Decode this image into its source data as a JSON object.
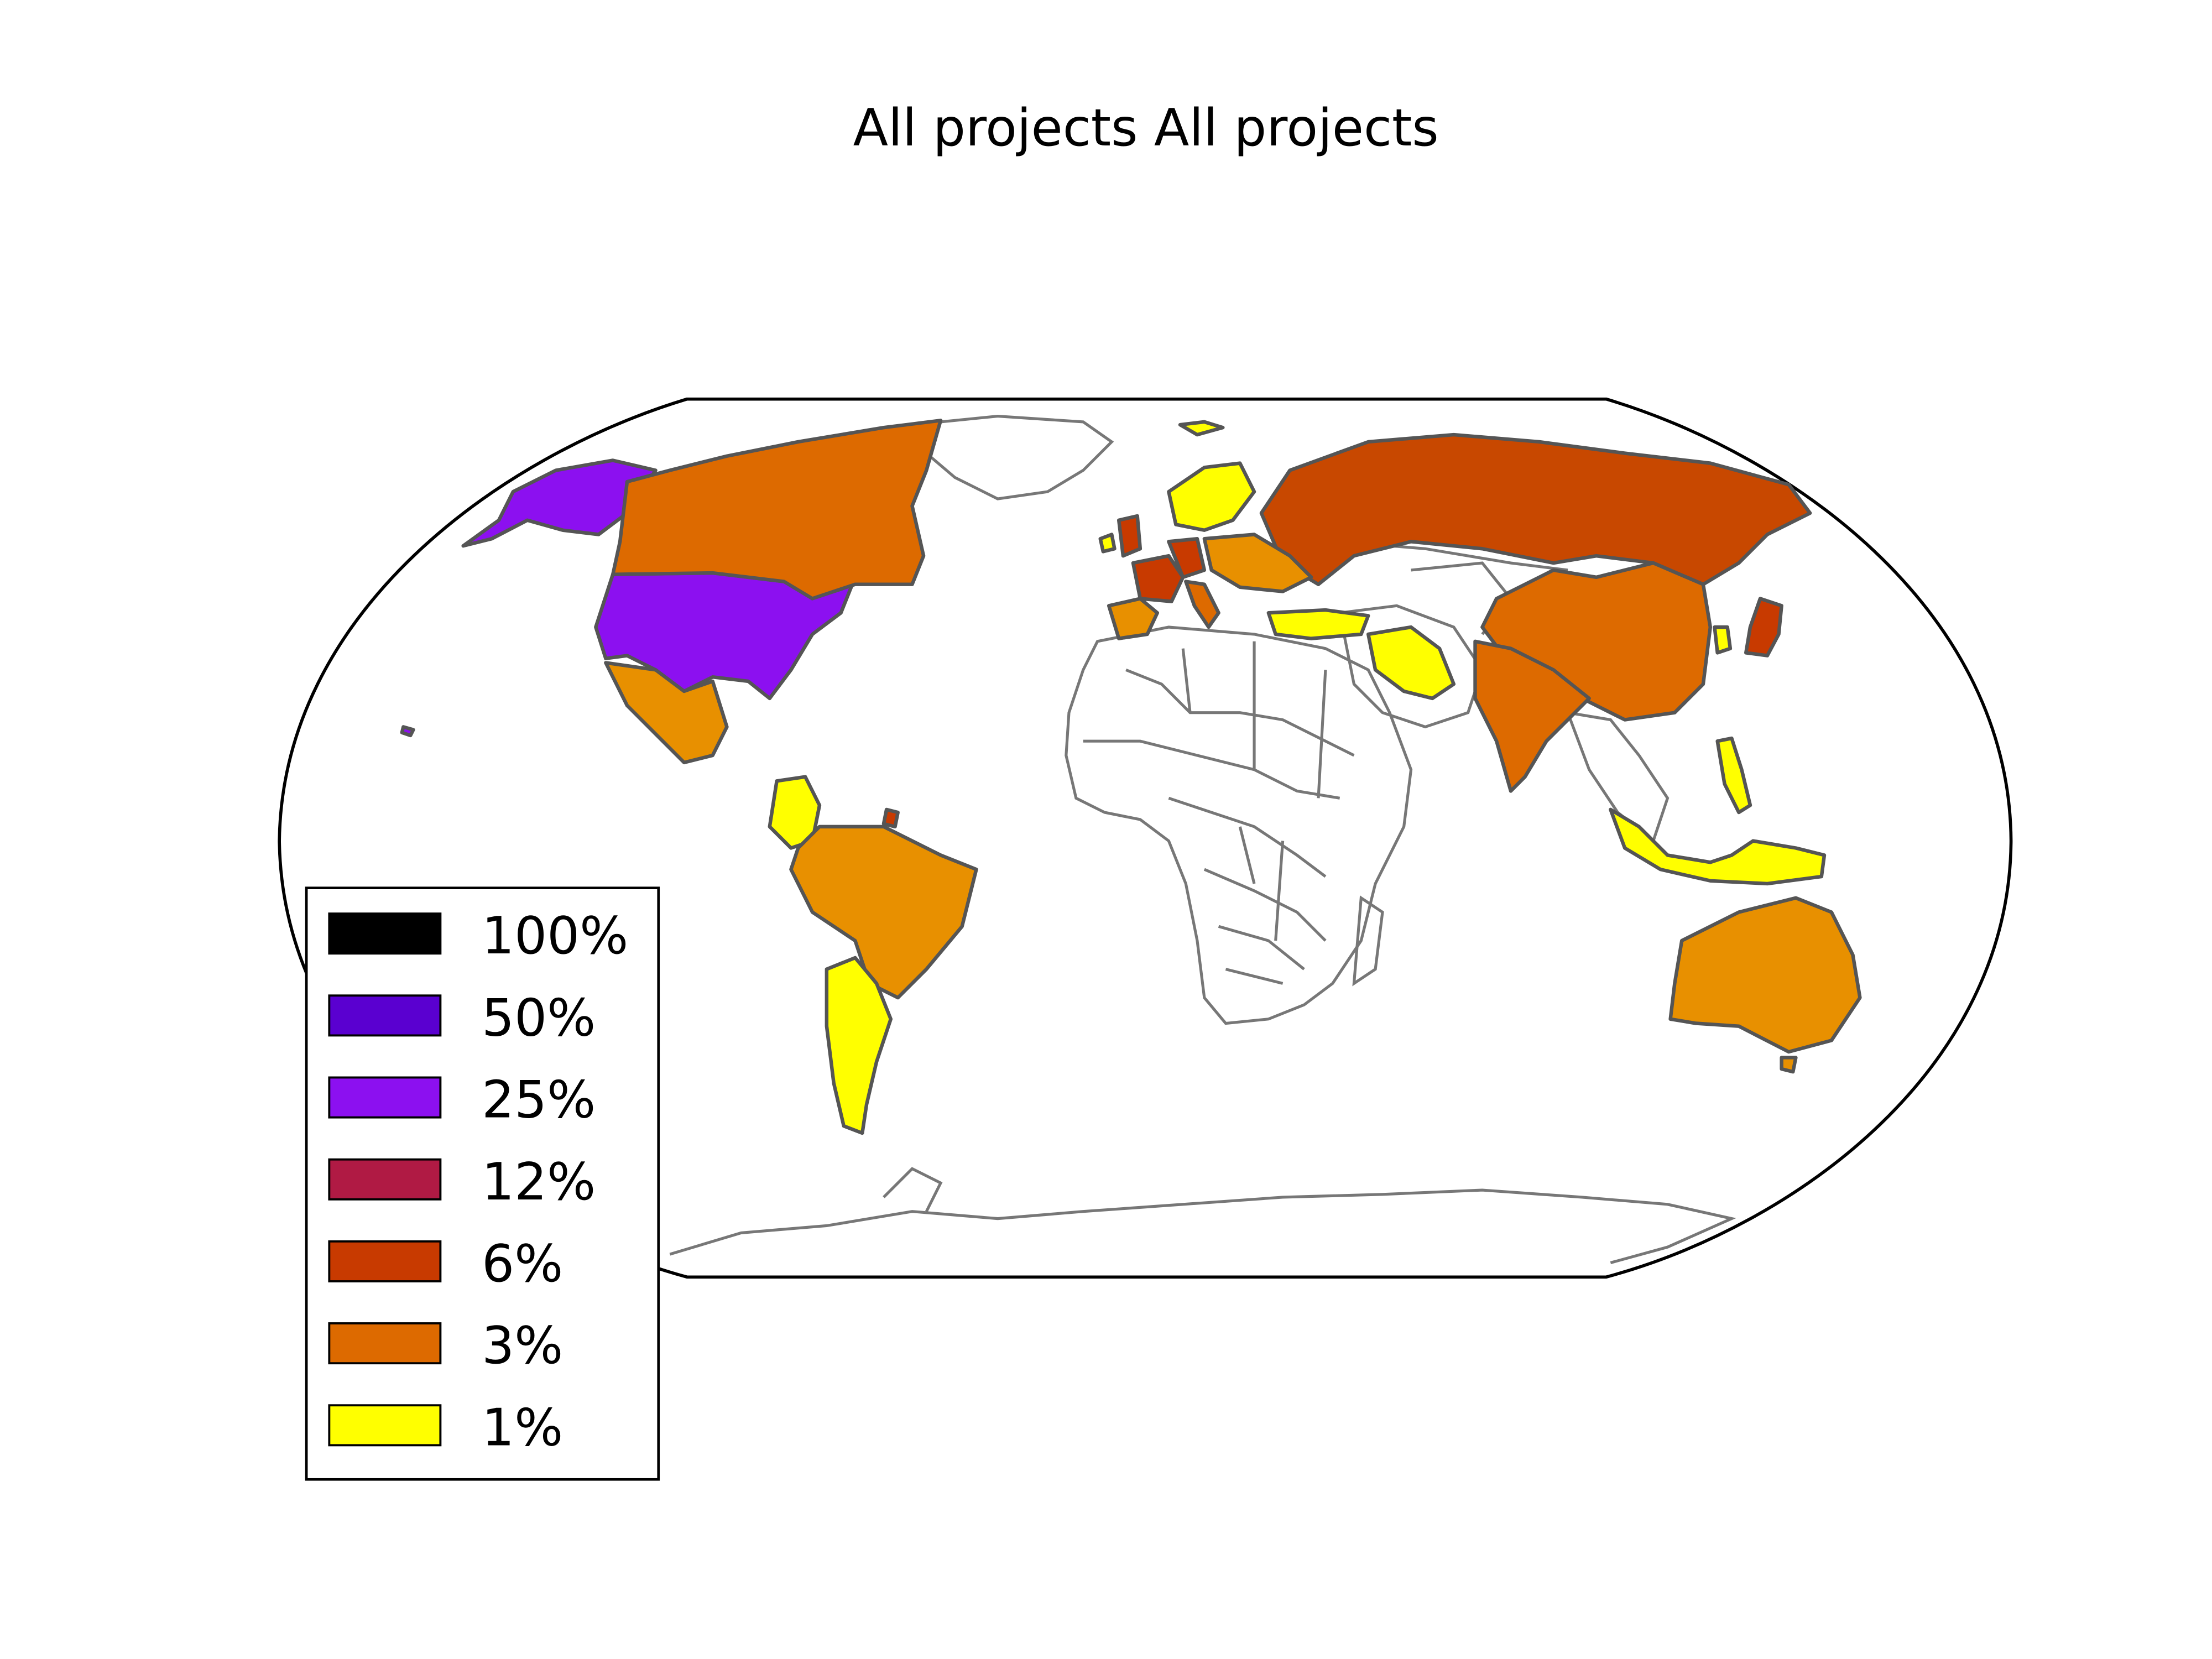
{
  "title": "All projects All projects",
  "legend": {
    "items": [
      {
        "label": "100%",
        "color": "#000000"
      },
      {
        "label": "50%",
        "color": "#5a00d0"
      },
      {
        "label": "25%",
        "color": "#8c10f0"
      },
      {
        "label": "12%",
        "color": "#b01a44"
      },
      {
        "label": "6%",
        "color": "#c83a00"
      },
      {
        "label": "3%",
        "color": "#dd6a00"
      },
      {
        "label": "1%",
        "color": "#ffff00"
      }
    ]
  },
  "regions": [
    {
      "name": "United States",
      "color": "#8c10f0"
    },
    {
      "name": "Alaska",
      "color": "#8c10f0"
    },
    {
      "name": "Canada",
      "color": "#dd6a00"
    },
    {
      "name": "Mexico",
      "color": "#e89000"
    },
    {
      "name": "Colombia",
      "color": "#ffff00"
    },
    {
      "name": "Brazil",
      "color": "#e89000"
    },
    {
      "name": "Argentina",
      "color": "#ffff00"
    },
    {
      "name": "Russia",
      "color": "#c84800"
    },
    {
      "name": "China",
      "color": "#dd6a00"
    },
    {
      "name": "India",
      "color": "#dd6a00"
    },
    {
      "name": "Japan",
      "color": "#c83a00"
    },
    {
      "name": "Australia",
      "color": "#e89000"
    },
    {
      "name": "Iran",
      "color": "#ffff00"
    },
    {
      "name": "Turkey",
      "color": "#ffff00"
    },
    {
      "name": "Indonesia",
      "color": "#ffff00"
    },
    {
      "name": "Philippines",
      "color": "#ffff00"
    },
    {
      "name": "Spain",
      "color": "#e89000"
    },
    {
      "name": "France",
      "color": "#c83a00"
    },
    {
      "name": "Germany",
      "color": "#c83a00"
    },
    {
      "name": "United Kingdom",
      "color": "#c83a00"
    },
    {
      "name": "Scandinavia",
      "color": "#ffff00"
    },
    {
      "name": "Italy",
      "color": "#dd6a00"
    },
    {
      "name": "Eastern Europe",
      "color": "#e89000"
    },
    {
      "name": "Korea",
      "color": "#ffff00"
    }
  ]
}
